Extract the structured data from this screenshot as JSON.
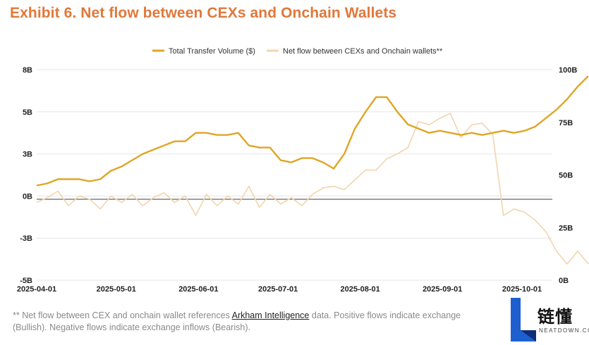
{
  "title": "Exhibit 6. Net flow between CEXs and Onchain Wallets",
  "footnote": {
    "line1_prefix": "** Net flow between CEX and onchain wallet references ",
    "link": "Arkham Intelligence",
    "line1_suffix": " data. Positive flows indicate exchange",
    "line2": "(Bullish). Negative flows indicate exchange inflows (Bearish)."
  },
  "logo": {
    "text": "链懂",
    "subtext": "NEATDOWN.COM",
    "icon": "letter-l-logo-icon"
  },
  "chart_data": {
    "type": "line",
    "legend_position": "top-center",
    "grid": "horizontal",
    "x_ticks": [
      "2025-04-01",
      "2025-05-01",
      "2025-06-01",
      "2025-07-01",
      "2025-08-01",
      "2025-09-01",
      "2025-10-01"
    ],
    "y_left": {
      "ticks": [
        "8B",
        "5B",
        "3B",
        "0B",
        "-3B",
        "-5B"
      ],
      "range": [
        -5,
        8
      ],
      "zero_line": 0
    },
    "y_right": {
      "ticks": [
        "100B",
        "75B",
        "50B",
        "25B",
        "0B"
      ],
      "range": [
        0,
        100
      ]
    },
    "series": [
      {
        "name": "Total Transfer Volume ($)",
        "axis": "right",
        "color": "#e0a526",
        "points": [
          [
            "2025-04-01",
            45
          ],
          [
            "2025-04-05",
            46
          ],
          [
            "2025-04-09",
            48
          ],
          [
            "2025-04-13",
            48
          ],
          [
            "2025-04-17",
            48
          ],
          [
            "2025-04-21",
            47
          ],
          [
            "2025-04-25",
            48
          ],
          [
            "2025-04-29",
            52
          ],
          [
            "2025-05-03",
            54
          ],
          [
            "2025-05-07",
            57
          ],
          [
            "2025-05-11",
            60
          ],
          [
            "2025-05-15",
            62
          ],
          [
            "2025-05-19",
            64
          ],
          [
            "2025-05-23",
            66
          ],
          [
            "2025-05-27",
            66
          ],
          [
            "2025-05-31",
            70
          ],
          [
            "2025-06-04",
            70
          ],
          [
            "2025-06-08",
            69
          ],
          [
            "2025-06-12",
            69
          ],
          [
            "2025-06-16",
            70
          ],
          [
            "2025-06-20",
            64
          ],
          [
            "2025-06-24",
            63
          ],
          [
            "2025-06-28",
            63
          ],
          [
            "2025-07-02",
            57
          ],
          [
            "2025-07-06",
            56
          ],
          [
            "2025-07-10",
            58
          ],
          [
            "2025-07-14",
            58
          ],
          [
            "2025-07-18",
            56
          ],
          [
            "2025-07-22",
            53
          ],
          [
            "2025-07-26",
            60
          ],
          [
            "2025-07-30",
            72
          ],
          [
            "2025-08-03",
            80
          ],
          [
            "2025-08-07",
            87
          ],
          [
            "2025-08-11",
            87
          ],
          [
            "2025-08-15",
            80
          ],
          [
            "2025-08-19",
            74
          ],
          [
            "2025-08-23",
            72
          ],
          [
            "2025-08-27",
            70
          ],
          [
            "2025-08-31",
            71
          ],
          [
            "2025-09-04",
            70
          ],
          [
            "2025-09-08",
            69
          ],
          [
            "2025-09-12",
            70
          ],
          [
            "2025-09-16",
            69
          ],
          [
            "2025-09-20",
            70
          ],
          [
            "2025-09-24",
            71
          ],
          [
            "2025-09-28",
            70
          ],
          [
            "2025-10-02",
            71
          ],
          [
            "2025-10-06",
            73
          ],
          [
            "2025-10-10",
            77
          ],
          [
            "2025-10-14",
            81
          ],
          [
            "2025-10-18",
            86
          ],
          [
            "2025-10-22",
            92
          ],
          [
            "2025-10-26",
            97
          ]
        ]
      },
      {
        "name": "Net flow between CEXs and Onchain wallets**",
        "axis": "left",
        "color": "#f3d4ae",
        "points": [
          [
            "2025-04-01",
            -0.2
          ],
          [
            "2025-04-05",
            0.1
          ],
          [
            "2025-04-09",
            0.5
          ],
          [
            "2025-04-13",
            -0.4
          ],
          [
            "2025-04-17",
            0.2
          ],
          [
            "2025-04-21",
            0.0
          ],
          [
            "2025-04-25",
            -0.6
          ],
          [
            "2025-04-29",
            0.2
          ],
          [
            "2025-05-03",
            -0.2
          ],
          [
            "2025-05-07",
            0.3
          ],
          [
            "2025-05-11",
            -0.4
          ],
          [
            "2025-05-15",
            0.1
          ],
          [
            "2025-05-19",
            0.4
          ],
          [
            "2025-05-23",
            -0.2
          ],
          [
            "2025-05-27",
            0.2
          ],
          [
            "2025-05-31",
            -1.0
          ],
          [
            "2025-06-04",
            0.3
          ],
          [
            "2025-06-08",
            -0.4
          ],
          [
            "2025-06-12",
            0.2
          ],
          [
            "2025-06-16",
            -0.3
          ],
          [
            "2025-06-20",
            0.8
          ],
          [
            "2025-06-24",
            -0.5
          ],
          [
            "2025-06-28",
            0.3
          ],
          [
            "2025-07-02",
            -0.3
          ],
          [
            "2025-07-06",
            0.1
          ],
          [
            "2025-07-10",
            -0.4
          ],
          [
            "2025-07-14",
            0.3
          ],
          [
            "2025-07-18",
            0.7
          ],
          [
            "2025-07-22",
            0.8
          ],
          [
            "2025-07-26",
            0.6
          ],
          [
            "2025-07-30",
            1.2
          ],
          [
            "2025-08-03",
            1.8
          ],
          [
            "2025-08-07",
            1.8
          ],
          [
            "2025-08-11",
            2.5
          ],
          [
            "2025-08-15",
            2.8
          ],
          [
            "2025-08-19",
            3.2
          ],
          [
            "2025-08-23",
            4.8
          ],
          [
            "2025-08-27",
            4.6
          ],
          [
            "2025-08-31",
            5.0
          ],
          [
            "2025-09-04",
            5.3
          ],
          [
            "2025-09-08",
            3.8
          ],
          [
            "2025-09-12",
            4.6
          ],
          [
            "2025-09-16",
            4.7
          ],
          [
            "2025-09-20",
            4.0
          ],
          [
            "2025-09-24",
            -1.0
          ],
          [
            "2025-09-28",
            -0.6
          ],
          [
            "2025-10-02",
            -0.8
          ],
          [
            "2025-10-06",
            -1.3
          ],
          [
            "2025-10-10",
            -2.0
          ],
          [
            "2025-10-14",
            -3.2
          ],
          [
            "2025-10-18",
            -4.0
          ],
          [
            "2025-10-22",
            -3.2
          ],
          [
            "2025-10-26",
            -4.0
          ]
        ]
      }
    ]
  }
}
